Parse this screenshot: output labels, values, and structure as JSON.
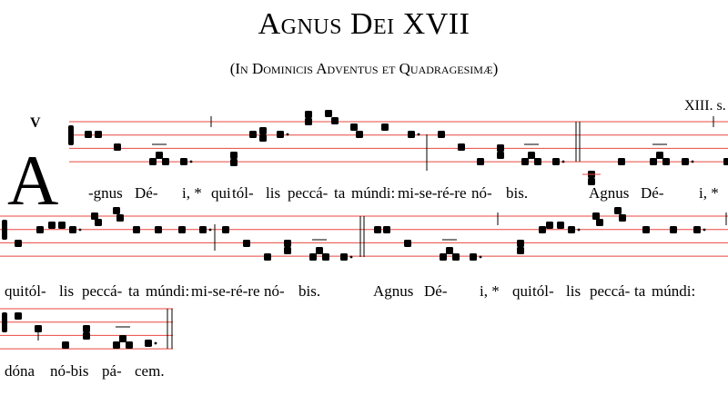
{
  "title": "Agnus Dei XVII",
  "subtitle": "(In Dominicis Adventus et Quadragesimæ)",
  "mode": "V",
  "century": "XIII. s.",
  "initial": "A",
  "colors": {
    "staff_lines": "#e8473f",
    "notes": "#000000"
  },
  "lyrics": {
    "line1": [
      "-gnus",
      "Dé-",
      "i, *",
      "qui",
      "tól-",
      "lis",
      "peccá-",
      "ta",
      "múndi:",
      "mi-se-ré-re",
      "nó-",
      "bis.",
      "Agnus",
      "Dé-",
      "i, *"
    ],
    "line2": [
      "qui",
      "tól-",
      "lis",
      "peccá-",
      "ta",
      "múndi:",
      "mi-se-ré-re",
      "nó-",
      "bis.",
      "Agnus",
      "Dé-",
      "i, *",
      "qui",
      "tól-",
      "lis",
      "peccá-",
      "ta",
      "múndi:"
    ],
    "line3": [
      "dóna",
      "nó-bis",
      "pá-",
      "cem."
    ]
  }
}
